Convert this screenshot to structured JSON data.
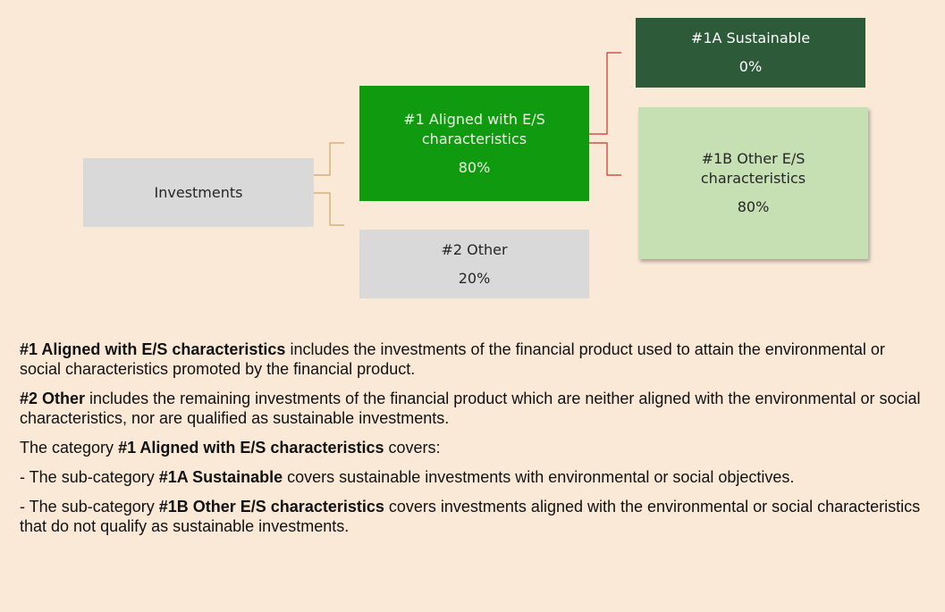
{
  "nodes": [
    {
      "label": "Investments",
      "value": null
    },
    {
      "label": "#1 Aligned with E/S characteristics",
      "value": "80%"
    },
    {
      "label": "#2 Other",
      "value": "20%"
    },
    {
      "label": "#1A Sustainable",
      "value": "0%"
    },
    {
      "label": "#1B Other E/S characteristics",
      "value": "80%"
    }
  ],
  "paragraphs": [
    [
      {
        "text": "#1 Aligned with E/S characteristics",
        "bold": true
      },
      {
        "text": " includes the investments of the financial product used to attain the environmental or social characteristics promoted by the financial product.",
        "bold": false
      }
    ],
    [
      {
        "text": "#2 Other",
        "bold": true
      },
      {
        "text": " includes the remaining investments of the financial product which are neither aligned with the environmental or social characteristics, nor are qualified as sustainable investments.",
        "bold": false
      }
    ],
    [
      {
        "text": "The category ",
        "bold": false
      },
      {
        "text": "#1 Aligned with E/S characteristics",
        "bold": true
      },
      {
        "text": " covers:",
        "bold": false
      }
    ],
    [
      {
        "text": "- The sub-category ",
        "bold": false
      },
      {
        "text": "#1A Sustainable",
        "bold": true
      },
      {
        "text": " covers sustainable investments with environmental or social objectives.",
        "bold": false
      }
    ],
    [
      {
        "text": "- The sub-category ",
        "bold": false
      },
      {
        "text": "#1B Other E/S characteristics",
        "bold": true
      },
      {
        "text": " covers investments aligned with the environmental or social characteristics that do not qualify as sustainable investments.",
        "bold": false
      }
    ]
  ]
}
